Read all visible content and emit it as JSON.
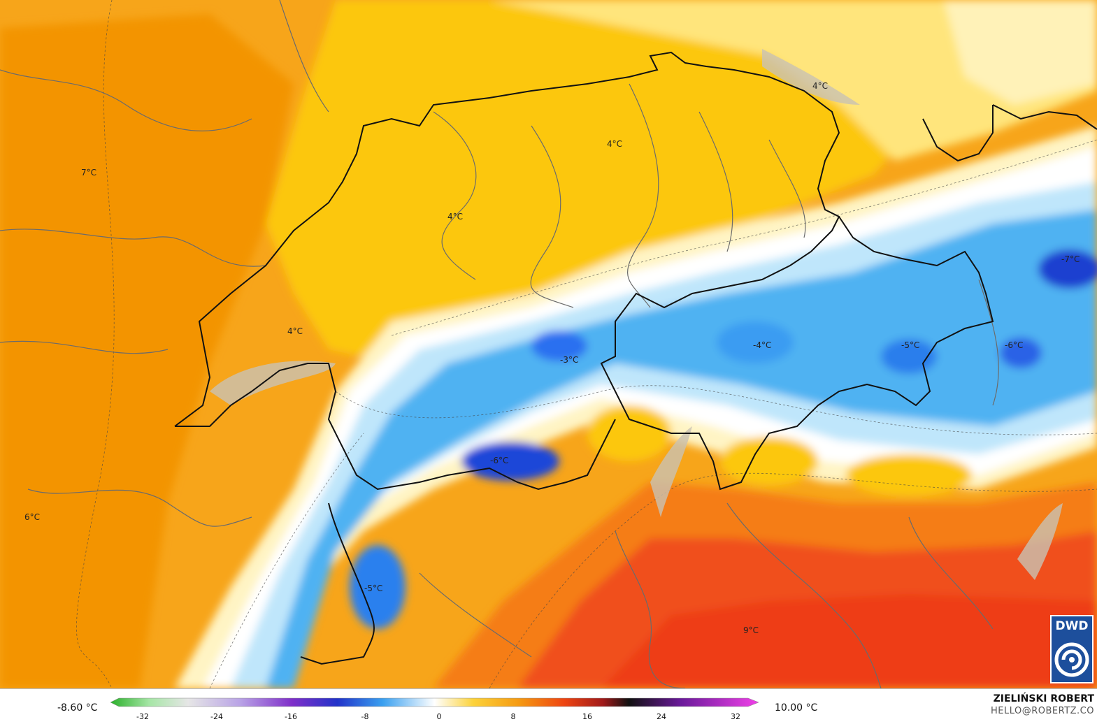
{
  "map": {
    "labels": [
      {
        "text": "4°C"
      },
      {
        "text": "4°C"
      },
      {
        "text": "4°C"
      },
      {
        "text": "4°C"
      },
      {
        "text": "7°C"
      },
      {
        "text": "6°C"
      },
      {
        "text": "-7°C"
      },
      {
        "text": "-4°C"
      },
      {
        "text": "-5°C"
      },
      {
        "text": "-6°C"
      },
      {
        "text": "-3°C"
      },
      {
        "text": "-6°C"
      },
      {
        "text": "-5°C"
      },
      {
        "text": "9°C"
      }
    ]
  },
  "legend": {
    "min_label": "-8.60 °C",
    "max_label": "10.00 °C",
    "ticks": [
      "-32",
      "-24",
      "-16",
      "-8",
      "0",
      "8",
      "16",
      "24",
      "32"
    ]
  },
  "branding": {
    "author_name": "ZIELIŃSKI ROBERT",
    "author_email": "HELLO@ROBERTZ.CO",
    "logo_text": "DWD"
  },
  "colors": {
    "very_cold": "#1f3fd6",
    "cold": "#2f8ff0",
    "cool": "#8fd0f7",
    "zero": "#ffffff",
    "mild": "#ffe27a",
    "warm": "#fcc200",
    "warmer": "#f9a200",
    "hot": "#f26a1a",
    "hotter": "#ef3a16"
  }
}
